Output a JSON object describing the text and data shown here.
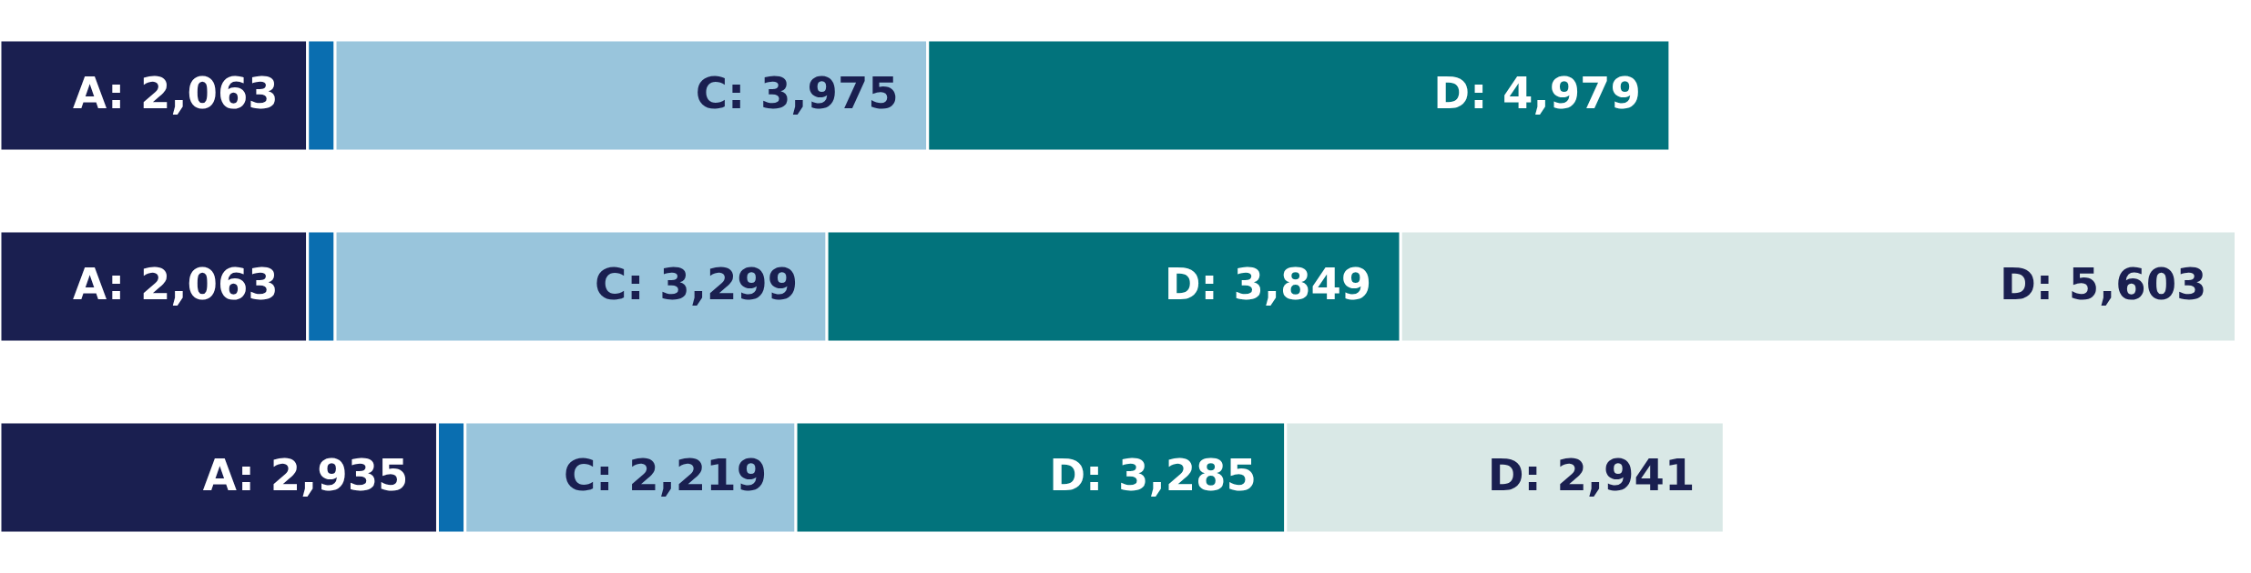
{
  "chart_data": {
    "type": "bar",
    "orientation": "horizontal",
    "stacked": true,
    "categories": [
      null,
      null,
      null
    ],
    "xlim": [
      0,
      15100
    ],
    "tick_labels": false,
    "grid": false,
    "series": [
      {
        "color": "#1a1f50",
        "values": [
          2063,
          2063,
          2935
        ],
        "value_labels": [
          "A: 2,063",
          "A: 2,063",
          "A: 2,935"
        ]
      },
      {
        "color": "#0a6eb0",
        "values": [
          185,
          185,
          185
        ],
        "value_labels": [
          null,
          null,
          null
        ]
      },
      {
        "color": "#99c5dc",
        "values": [
          3975,
          3299,
          2219
        ],
        "value_labels": [
          "C: 3,975",
          "C: 3,299",
          "C: 2,219"
        ]
      },
      {
        "color": "#02737c",
        "values": [
          4979,
          3849,
          3285
        ],
        "value_labels": [
          "D: 4,979",
          "D: 3,849",
          "D: 3,285"
        ]
      },
      {
        "color": "#d9e8e6",
        "values": [
          null,
          5603,
          2941
        ],
        "value_labels": [
          null,
          "D: 5,603",
          "D: 2,941"
        ]
      }
    ]
  }
}
